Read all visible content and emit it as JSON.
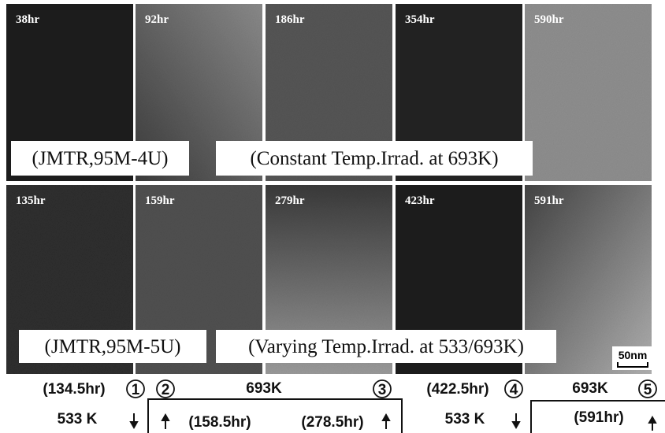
{
  "rows": [
    {
      "panels": [
        "38hr",
        "92hr",
        "186hr",
        "354hr",
        "590hr"
      ],
      "specimen": "(JMTR,95M-4U)",
      "condition": "(Constant Temp.Irrad. at 693K)"
    },
    {
      "panels": [
        "135hr",
        "159hr",
        "279hr",
        "423hr",
        "591hr"
      ],
      "specimen": "(JMTR,95M-5U)",
      "condition": "(Varying Temp.Irrad. at 533/693K)"
    }
  ],
  "scale_bar": "50nm",
  "timeline": {
    "steps": [
      "1",
      "2",
      "3",
      "4",
      "5"
    ],
    "times": [
      "(134.5hr)",
      "(158.5hr)",
      "(278.5hr)",
      "(422.5hr)",
      "(591hr)"
    ],
    "high_temp": [
      "693K",
      "693K"
    ],
    "low_temp": [
      "533 K",
      "533 K"
    ]
  }
}
